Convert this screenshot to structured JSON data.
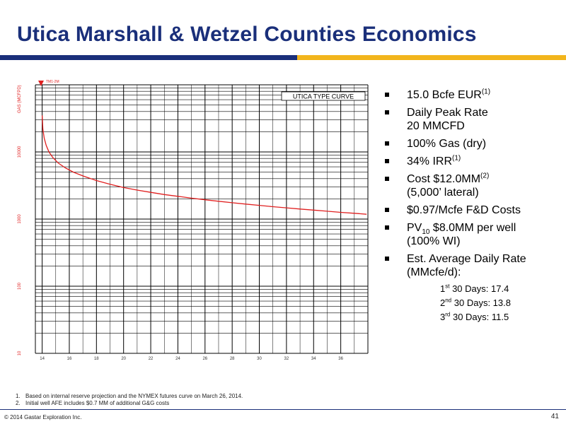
{
  "title": "Utica Marshall & Wetzel Counties Economics",
  "bullets": [
    {
      "pre": "15.0 Bcfe EUR",
      "sup": "(1)",
      "post": "",
      "line2": ""
    },
    {
      "pre": "Daily Peak Rate",
      "sup": "",
      "post": "",
      "line2": "20 MMCFD"
    },
    {
      "pre": "100% Gas (dry)",
      "sup": "",
      "post": "",
      "line2": ""
    },
    {
      "pre": "34% IRR",
      "sup": "(1)",
      "post": "",
      "line2": ""
    },
    {
      "pre": "Cost $12.0MM",
      "sup": "(2)",
      "post": "",
      "line2": "(5,000’ lateral)"
    },
    {
      "pre": "$0.97/Mcfe F&D Costs",
      "sup": "",
      "post": "",
      "line2": ""
    },
    {
      "pv_pre": "PV",
      "pv_sub": "10",
      "pv_post": " $8.0MM per well",
      "line2": "(100% WI)"
    },
    {
      "pre": "Est. Average Daily Rate",
      "sup": "",
      "post": "",
      "line2": "(MMcfe/d):"
    }
  ],
  "rates": [
    {
      "ord": "1",
      "sup": "st",
      "text": " 30 Days:  17.4"
    },
    {
      "ord": "2",
      "sup": "nd",
      "text": " 30 Days:  13.8"
    },
    {
      "ord": "3",
      "sup": "rd",
      "text": " 30 Days:  11.5"
    }
  ],
  "footnotes": [
    {
      "num": "1.",
      "text": "Based on internal reserve projection and the NYMEX futures curve on March 26, 2014."
    },
    {
      "num": "2.",
      "text": "Initial well AFE includes $0.7 MM of additional G&G costs"
    }
  ],
  "copyright": "© 2014 Gastar Exploration Inc.",
  "page_number": "41",
  "chart_data": {
    "type": "line",
    "chart_label": "UTICA TYPE CURVE",
    "ylabel": "GAS (MCFPD)",
    "yscale": "log",
    "ylim": [
      10,
      100000
    ],
    "ytick_labels": [
      "10",
      "100",
      "1000",
      "10000"
    ],
    "top_marker": "TM1-2M",
    "xlim": [
      13.5,
      38
    ],
    "xtick_labels": [
      "14",
      "16",
      "18",
      "20",
      "22",
      "24",
      "26",
      "28",
      "30",
      "32",
      "34",
      "36"
    ],
    "series_color": "#e02020",
    "series": [
      {
        "x": [
          14.0,
          14.05,
          14.15,
          14.3,
          14.5,
          14.8,
          15.2,
          15.7,
          16.3,
          17.0,
          18.0,
          19.0,
          20.0,
          21.0,
          22.0,
          23.0,
          24.0,
          25.0,
          26.0,
          27.0,
          28.0,
          29.0,
          30.0,
          31.0,
          32.0,
          33.0,
          34.0,
          35.0,
          36.0,
          37.0,
          37.9
        ],
        "y": [
          35000,
          22000,
          16000,
          12500,
          10000,
          8200,
          6800,
          5800,
          5000,
          4400,
          3750,
          3300,
          2950,
          2700,
          2500,
          2320,
          2180,
          2050,
          1940,
          1840,
          1750,
          1670,
          1600,
          1530,
          1470,
          1410,
          1360,
          1310,
          1260,
          1220,
          1180
        ]
      }
    ]
  }
}
